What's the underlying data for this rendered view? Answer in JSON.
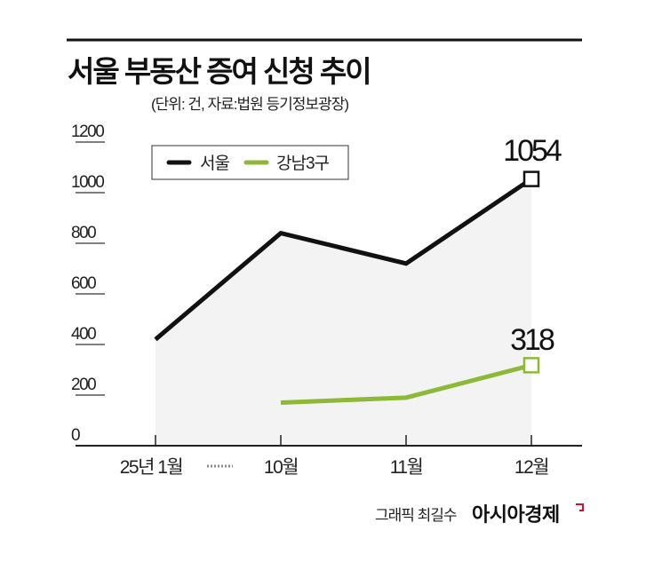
{
  "chart_data": {
    "type": "line",
    "title": "서울 부동산 증여 신청 추이",
    "subtitle": "(단위: 건, 자료:법원 등기정보광장)",
    "categories": [
      "25년 1월",
      "10월",
      "11월",
      "12월"
    ],
    "ylim": [
      0,
      1200
    ],
    "yticks": [
      "0",
      "200",
      "400",
      "600",
      "800",
      "1000",
      "1200"
    ],
    "series": [
      {
        "name": "서울",
        "color": "#111111",
        "values": [
          420,
          840,
          720,
          1054
        ]
      },
      {
        "name": "강남3구",
        "color": "#8db83a",
        "values": [
          null,
          170,
          190,
          318
        ]
      }
    ],
    "data_labels": [
      "1054",
      "318"
    ],
    "legend_placement": "top-left",
    "grid": false,
    "area_fill_color": "#f3f3f3"
  },
  "credit": {
    "graphic": "그래픽 최길수",
    "brand": "아시아경제",
    "brand_mark_color": "#d0112b"
  }
}
